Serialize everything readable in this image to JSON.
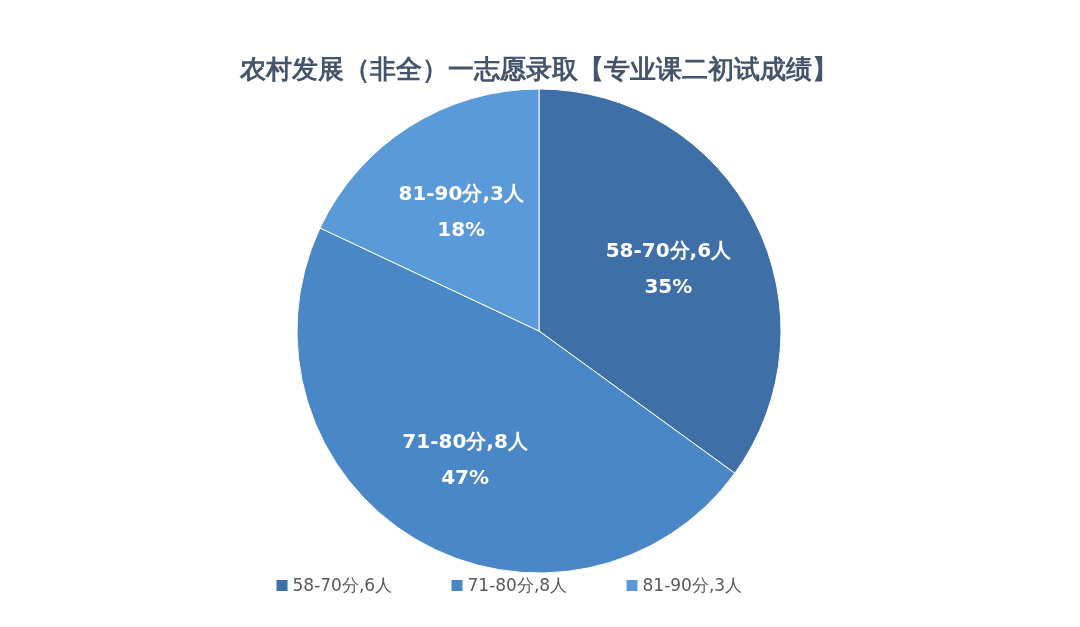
{
  "chart_data": {
    "type": "pie",
    "title": "农村发展（非全）一志愿录取【专业课二初试成绩】",
    "categories": [
      "58-70分,6人",
      "71-80分,8人",
      "81-90分,3人"
    ],
    "values": [
      35,
      47,
      18
    ],
    "value_labels": [
      "35%",
      "47%",
      "18%"
    ],
    "colors": [
      "#3e6fa6",
      "#4a87c6",
      "#5a9ad8"
    ],
    "legend": "bottom"
  }
}
